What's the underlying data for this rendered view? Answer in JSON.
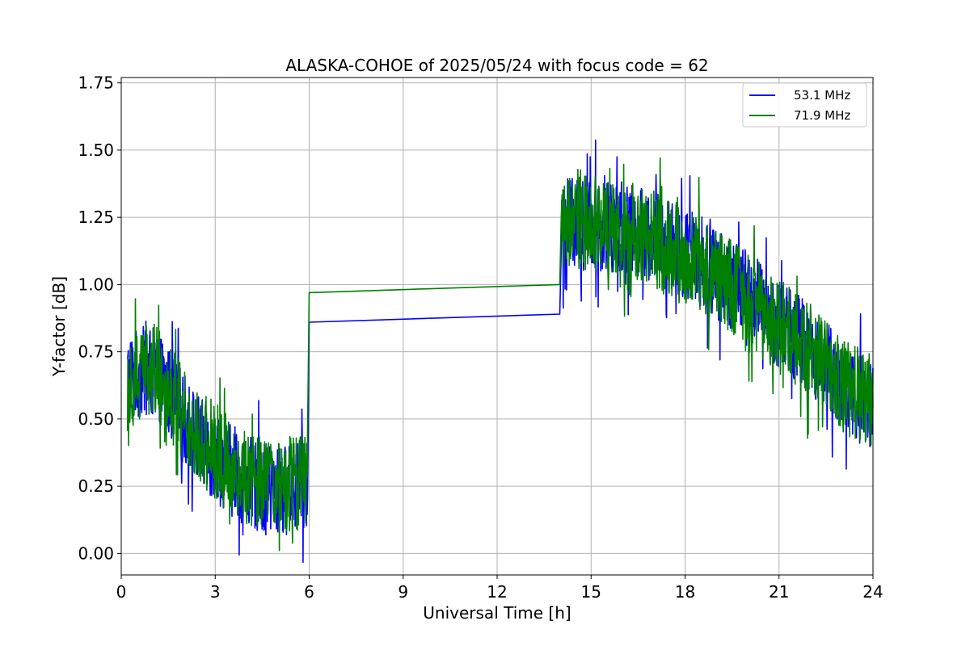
{
  "chart_data": {
    "type": "line",
    "title": "ALASKA-COHOE of 2025/05/24 with focus code = 62",
    "xlabel": "Universal Time [h]",
    "ylabel": "Y-factor [dB]",
    "xlim": [
      0,
      24
    ],
    "ylim": [
      -0.08,
      1.77
    ],
    "xticks": [
      0,
      3,
      6,
      9,
      12,
      15,
      18,
      21,
      24
    ],
    "xtick_labels": [
      "0",
      "3",
      "6",
      "9",
      "12",
      "15",
      "18",
      "21",
      "24"
    ],
    "yticks": [
      0.0,
      0.25,
      0.5,
      0.75,
      1.0,
      1.25,
      1.5,
      1.75
    ],
    "ytick_labels": [
      "0.00",
      "0.25",
      "0.50",
      "0.75",
      "1.00",
      "1.25",
      "1.50",
      "1.75"
    ],
    "grid": true,
    "legend_position": "top-right",
    "series": [
      {
        "name": "53.1 MHz",
        "color": "#0000ff",
        "trend": [
          [
            0.2,
            0.65
          ],
          [
            0.8,
            0.68
          ],
          [
            1.2,
            0.66
          ],
          [
            1.6,
            0.58
          ],
          [
            2.0,
            0.5
          ],
          [
            2.5,
            0.42
          ],
          [
            3.0,
            0.36
          ],
          [
            3.5,
            0.31
          ],
          [
            4.0,
            0.27
          ],
          [
            4.5,
            0.24
          ],
          [
            5.0,
            0.23
          ],
          [
            5.5,
            0.24
          ],
          [
            5.95,
            0.26
          ],
          [
            6.0,
            0.86
          ],
          [
            14.0,
            0.89
          ],
          [
            14.05,
            1.23
          ],
          [
            15.0,
            1.22
          ],
          [
            16.0,
            1.21
          ],
          [
            17.0,
            1.18
          ],
          [
            18.0,
            1.12
          ],
          [
            19.0,
            1.04
          ],
          [
            20.0,
            0.96
          ],
          [
            21.0,
            0.86
          ],
          [
            22.0,
            0.76
          ],
          [
            23.0,
            0.63
          ],
          [
            24.0,
            0.55
          ]
        ],
        "noise_amplitude": 0.17
      },
      {
        "name": "71.9 MHz",
        "color": "#008000",
        "trend": [
          [
            0.2,
            0.63
          ],
          [
            0.8,
            0.7
          ],
          [
            1.2,
            0.67
          ],
          [
            1.6,
            0.59
          ],
          [
            2.0,
            0.51
          ],
          [
            2.5,
            0.44
          ],
          [
            3.0,
            0.38
          ],
          [
            3.5,
            0.33
          ],
          [
            4.0,
            0.29
          ],
          [
            4.5,
            0.26
          ],
          [
            5.0,
            0.25
          ],
          [
            5.5,
            0.26
          ],
          [
            5.95,
            0.28
          ],
          [
            6.0,
            0.97
          ],
          [
            14.0,
            1.0
          ],
          [
            14.05,
            1.24
          ],
          [
            15.0,
            1.23
          ],
          [
            16.0,
            1.21
          ],
          [
            17.0,
            1.17
          ],
          [
            18.0,
            1.11
          ],
          [
            19.0,
            1.04
          ],
          [
            20.0,
            0.95
          ],
          [
            21.0,
            0.85
          ],
          [
            22.0,
            0.75
          ],
          [
            23.0,
            0.62
          ],
          [
            24.0,
            0.56
          ]
        ],
        "noise_amplitude": 0.18
      }
    ]
  }
}
